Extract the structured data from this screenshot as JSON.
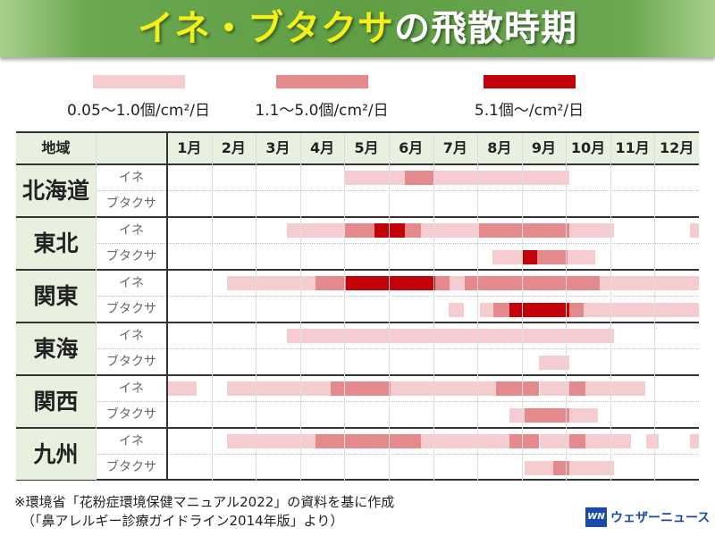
{
  "title": {
    "part1": "イネ・ブタクサ",
    "part2": "の飛散時期"
  },
  "colors": {
    "low": "#f5cdd0",
    "mid": "#e48a8c",
    "high": "#c40008"
  },
  "legend": [
    {
      "level": "low",
      "label": "0.05〜1.0個/cm²/日"
    },
    {
      "level": "mid",
      "label": "1.1〜5.0個/cm²/日"
    },
    {
      "level": "high",
      "label": "5.1個〜/cm²/日"
    }
  ],
  "header": {
    "region": "地域",
    "months": [
      "1月",
      "2月",
      "3月",
      "4月",
      "5月",
      "6月",
      "7月",
      "8月",
      "9月",
      "10月",
      "11月",
      "12月"
    ]
  },
  "species": {
    "rice": "イネ",
    "ragweed": "ブタクサ"
  },
  "chart_data": {
    "type": "table",
    "title": "イネ・ブタクサの飛散時期",
    "xlabel": "月",
    "ylabel": "地域",
    "x_range_months": [
      0,
      12
    ],
    "levels": {
      "low": "0.05〜1.0個/cm²/日",
      "mid": "1.1〜5.0個/cm²/日",
      "high": "5.1個〜/cm²/日"
    },
    "regions": [
      {
        "name": "北海道",
        "rice": [
          [
            4.02,
            5.37,
            "low"
          ],
          [
            5.37,
            6.03,
            "mid"
          ],
          [
            6.03,
            9.08,
            "low"
          ]
        ],
        "ragweed": []
      },
      {
        "name": "東北",
        "rice": [
          [
            2.71,
            4.02,
            "low"
          ],
          [
            4.02,
            4.68,
            "mid"
          ],
          [
            4.68,
            5.37,
            "high"
          ],
          [
            5.37,
            5.73,
            "mid"
          ],
          [
            5.73,
            7.03,
            "low"
          ],
          [
            7.03,
            9.08,
            "mid"
          ],
          [
            9.08,
            10.08,
            "low"
          ],
          [
            11.8,
            12,
            "low"
          ]
        ],
        "ragweed": [
          [
            7.34,
            8.0,
            "low"
          ],
          [
            8.0,
            8.34,
            "high"
          ],
          [
            8.34,
            9.03,
            "mid"
          ],
          [
            9.03,
            9.67,
            "low"
          ]
        ]
      },
      {
        "name": "関東",
        "rice": [
          [
            1.35,
            3.35,
            "low"
          ],
          [
            3.35,
            4.03,
            "mid"
          ],
          [
            4.03,
            6.06,
            "high"
          ],
          [
            6.06,
            6.38,
            "mid"
          ],
          [
            6.38,
            6.72,
            "low"
          ],
          [
            6.72,
            9.76,
            "mid"
          ],
          [
            9.76,
            12,
            "low"
          ]
        ],
        "ragweed": [
          [
            6.36,
            6.7,
            "low"
          ],
          [
            7.06,
            7.36,
            "low"
          ],
          [
            7.36,
            7.72,
            "mid"
          ],
          [
            7.72,
            9.08,
            "high"
          ],
          [
            9.08,
            9.4,
            "mid"
          ],
          [
            9.4,
            12,
            "low"
          ]
        ]
      },
      {
        "name": "東海",
        "rice": [
          [
            2.71,
            10.08,
            "low"
          ]
        ],
        "ragweed": [
          [
            8.38,
            9.08,
            "low"
          ]
        ]
      },
      {
        "name": "関西",
        "rice": [
          [
            0,
            0.66,
            "low"
          ],
          [
            1.35,
            3.7,
            "low"
          ],
          [
            3.7,
            5.05,
            "mid"
          ],
          [
            5.05,
            7.42,
            "low"
          ],
          [
            7.42,
            8.4,
            "mid"
          ],
          [
            8.4,
            9.08,
            "low"
          ],
          [
            9.08,
            9.44,
            "mid"
          ],
          [
            9.44,
            10.8,
            "low"
          ]
        ],
        "ragweed": [
          [
            7.72,
            8.06,
            "low"
          ],
          [
            8.06,
            9.08,
            "mid"
          ],
          [
            9.08,
            9.72,
            "low"
          ]
        ]
      },
      {
        "name": "九州",
        "rice": [
          [
            1.35,
            3.35,
            "low"
          ],
          [
            3.35,
            5.72,
            "mid"
          ],
          [
            5.72,
            7.72,
            "low"
          ],
          [
            7.72,
            8.4,
            "mid"
          ],
          [
            8.4,
            9.08,
            "low"
          ],
          [
            9.08,
            9.44,
            "mid"
          ],
          [
            9.44,
            10.46,
            "low"
          ],
          [
            10.8,
            11.1,
            "low"
          ],
          [
            11.8,
            12,
            "low"
          ]
        ],
        "ragweed": [
          [
            8.06,
            8.72,
            "low"
          ],
          [
            8.72,
            9.08,
            "mid"
          ],
          [
            9.08,
            10.08,
            "low"
          ]
        ]
      }
    ]
  },
  "footer": {
    "note1": "※環境省「花粉症環境保健マニュアル2022」の資料を基に作成",
    "note2": "（「鼻アレルギー診療ガイドライン2014年版」より）",
    "logo_mark": "WN",
    "logo_text": "ウェザーニュース"
  }
}
